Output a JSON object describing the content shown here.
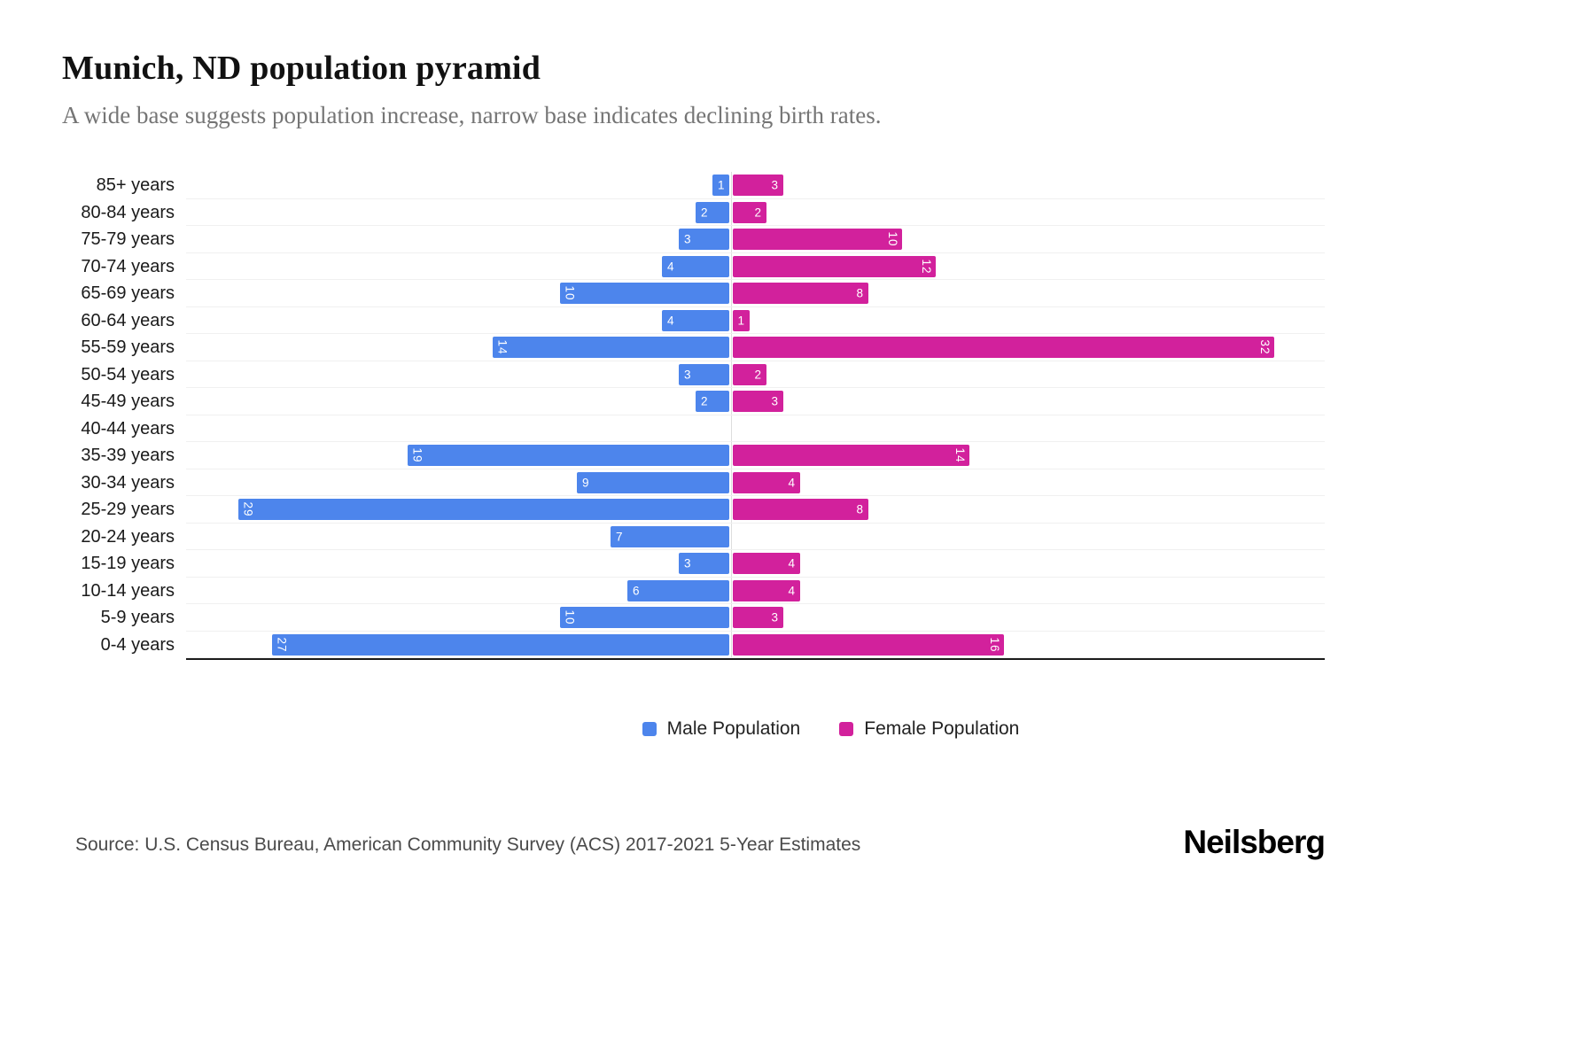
{
  "header": {
    "title": "Munich, ND population pyramid",
    "subtitle": "A wide base suggests population increase, narrow base indicates declining birth rates."
  },
  "chart_data": {
    "type": "bar",
    "variant": "population-pyramid",
    "title": "Munich, ND population pyramid",
    "categories": [
      "85+ years",
      "80-84 years",
      "75-79 years",
      "70-74 years",
      "65-69 years",
      "60-64 years",
      "55-59 years",
      "50-54 years",
      "45-49 years",
      "40-44 years",
      "35-39 years",
      "30-34 years",
      "25-29 years",
      "20-24 years",
      "15-19 years",
      "10-14 years",
      "5-9 years",
      "0-4 years"
    ],
    "series": [
      {
        "name": "Male Population",
        "color": "#4d85ec",
        "values": [
          1,
          2,
          3,
          4,
          10,
          4,
          14,
          3,
          2,
          0,
          19,
          9,
          29,
          7,
          3,
          6,
          10,
          27
        ]
      },
      {
        "name": "Female Population",
        "color": "#d2219c",
        "values": [
          3,
          2,
          10,
          12,
          8,
          1,
          32,
          2,
          3,
          0,
          14,
          4,
          8,
          0,
          4,
          4,
          3,
          16
        ]
      }
    ],
    "value_axis_max_each_side": 32,
    "grid": "horizontal-light",
    "legend_position": "bottom-center",
    "bar_value_labels": "inside-outer-end, two-digit labels rotated 90deg"
  },
  "footer": {
    "source": "Source: U.S. Census Bureau, American Community Survey (ACS) 2017-2021 5-Year Estimates",
    "logo": "Neilsberg"
  }
}
